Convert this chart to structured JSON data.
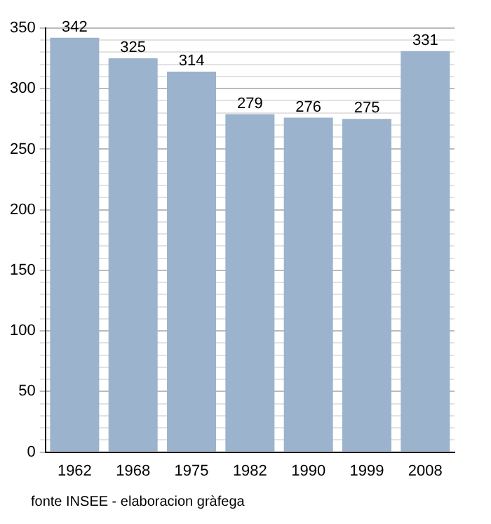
{
  "chart_data": {
    "type": "bar",
    "categories": [
      "1962",
      "1968",
      "1975",
      "1982",
      "1990",
      "1999",
      "2008"
    ],
    "values": [
      342,
      325,
      314,
      279,
      276,
      275,
      331
    ],
    "color": "#9bb3cc",
    "ylim": [
      0,
      350
    ],
    "yticks": [
      0,
      {
        "value": 10,
        "label": null
      },
      {
        "value": 20,
        "label": null
      },
      {
        "value": 30,
        "label": null
      },
      {
        "value": 40,
        "label": null
      },
      50,
      {
        "value": 60,
        "label": null
      },
      {
        "value": 70,
        "label": null
      },
      {
        "value": 80,
        "label": null
      },
      {
        "value": 90,
        "label": null
      },
      100,
      {
        "value": 110,
        "label": null
      },
      {
        "value": 120,
        "label": null
      },
      {
        "value": 130,
        "label": null
      },
      {
        "value": 140,
        "label": null
      },
      150,
      {
        "value": 160,
        "label": null
      },
      {
        "value": 170,
        "label": null
      },
      {
        "value": 180,
        "label": null
      },
      {
        "value": 190,
        "label": null
      },
      200,
      {
        "value": 210,
        "label": null
      },
      {
        "value": 220,
        "label": null
      },
      {
        "value": 230,
        "label": null
      },
      {
        "value": 240,
        "label": null
      },
      250,
      {
        "value": 260,
        "label": null
      },
      {
        "value": 270,
        "label": null
      },
      {
        "value": 280,
        "label": null
      },
      {
        "value": 290,
        "label": null
      },
      300,
      {
        "value": 310,
        "label": null
      },
      {
        "value": 320,
        "label": null
      },
      {
        "value": 330,
        "label": null
      },
      {
        "value": 340,
        "label": null
      },
      350
    ],
    "grid": "y",
    "data_labels": true,
    "legend": false,
    "annotations": [
      "fonte INSEE - elaboracion gràfega"
    ]
  }
}
